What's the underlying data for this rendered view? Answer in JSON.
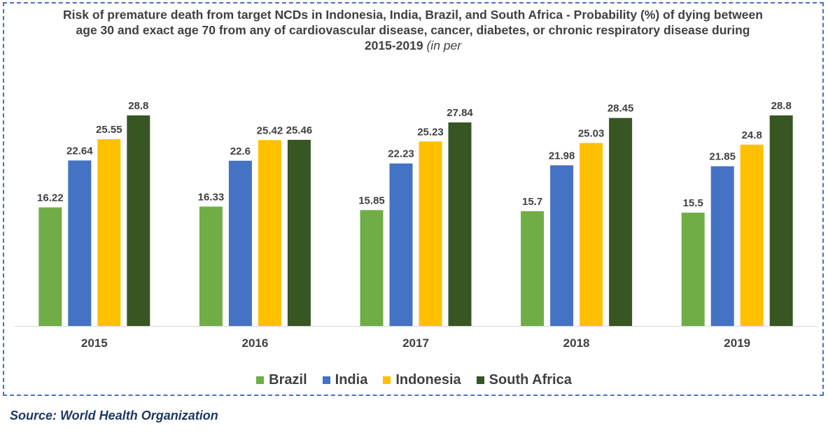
{
  "title": {
    "main": "Risk of premature death from target NCDs in Indonesia, India, Brazil, and South Africa - Probability (%) of dying between age 30 and exact age 70 from any of cardiovascular disease, cancer, diabetes, or chronic respiratory disease during 2015-2019",
    "suffix": "(in per"
  },
  "source": "Source: World Health Organization",
  "chart_data": {
    "type": "bar",
    "title": "Risk of premature death from target NCDs in Indonesia, India, Brazil, and South Africa - Probability (%) of dying between age 30 and exact age 70 from any of cardiovascular disease, cancer, diabetes, or chronic respiratory disease during 2015-2019 (in per",
    "xlabel": "",
    "ylabel": "",
    "categories": [
      "2015",
      "2016",
      "2017",
      "2018",
      "2019"
    ],
    "ylim": [
      0,
      28.8
    ],
    "grid": false,
    "legend_position": "bottom",
    "series": [
      {
        "name": "Brazil",
        "color": "#70ad47",
        "values": [
          16.22,
          16.33,
          15.85,
          15.7,
          15.5
        ],
        "labels": [
          "16.22",
          "16.33",
          "15.85",
          "15.7",
          "15.5"
        ]
      },
      {
        "name": "India",
        "color": "#4472c4",
        "values": [
          22.64,
          22.6,
          22.23,
          21.98,
          21.85
        ],
        "labels": [
          "22.64",
          "22.6",
          "22.23",
          "21.98",
          "21.85"
        ]
      },
      {
        "name": "Indonesia",
        "color": "#ffc000",
        "values": [
          25.55,
          25.42,
          25.23,
          25.03,
          24.8
        ],
        "labels": [
          "25.55",
          "25.42",
          "25.23",
          "25.03",
          "24.8"
        ]
      },
      {
        "name": "South Africa",
        "color": "#375623",
        "values": [
          28.8,
          25.46,
          27.84,
          28.45,
          28.8
        ],
        "labels": [
          "28.8",
          "25.46",
          "27.84",
          "28.45",
          "28.8"
        ]
      }
    ]
  }
}
